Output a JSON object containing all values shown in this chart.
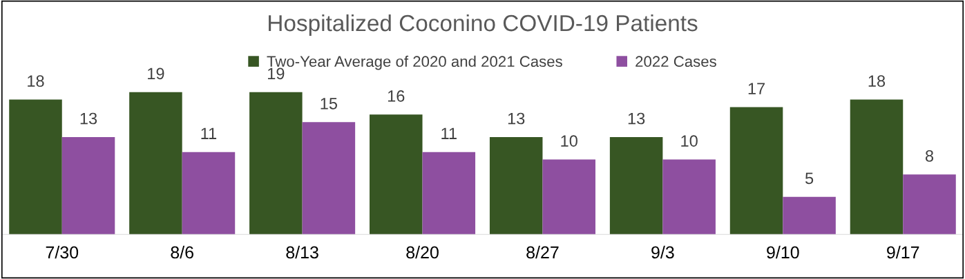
{
  "chart_data": {
    "type": "bar",
    "title": "Hospitalized Coconino COVID-19 Patients",
    "categories": [
      "7/30",
      "8/6",
      "8/13",
      "8/20",
      "8/27",
      "9/3",
      "9/10",
      "9/17"
    ],
    "series": [
      {
        "name": "Two-Year Average of 2020 and 2021 Cases",
        "color": "#375623",
        "values": [
          18,
          19,
          19,
          16,
          13,
          13,
          17,
          18
        ]
      },
      {
        "name": "2022 Cases",
        "color": "#8e4fa0",
        "values": [
          13,
          11,
          15,
          11,
          10,
          10,
          5,
          8
        ]
      }
    ],
    "data_labels": true,
    "legend": "top",
    "grid": false
  }
}
